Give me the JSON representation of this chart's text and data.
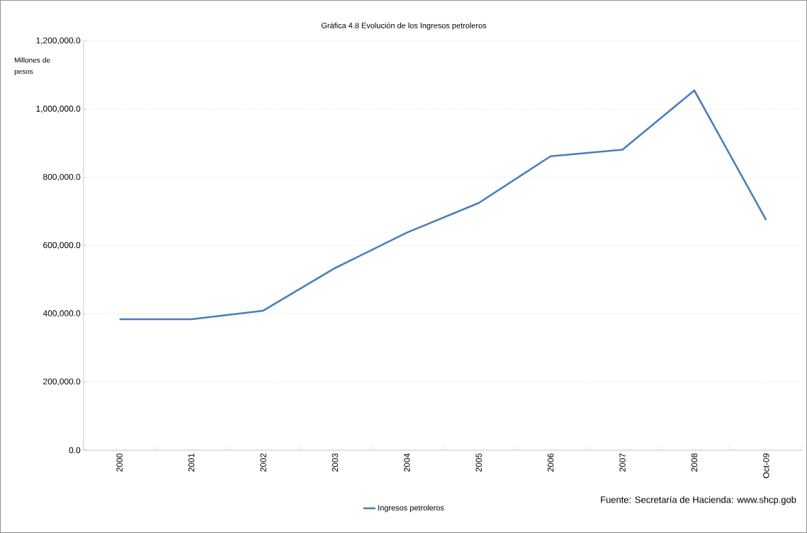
{
  "chart_data": {
    "type": "line",
    "title": "Gráfica 4.8 Evolución de los Ingresos petroleros",
    "ylabel": "Millones de pesos",
    "categories": [
      "2000",
      "2001",
      "2002",
      "2003",
      "2004",
      "2005",
      "2006",
      "2007",
      "2008",
      "Oct-09"
    ],
    "series": [
      {
        "name": "Ingresos petroleros",
        "color": "#4a7ebb",
        "values": [
          384000,
          384000,
          409000,
          534000,
          638000,
          725000,
          862000,
          881000,
          1055000,
          675000
        ]
      }
    ],
    "ylim": [
      0,
      1200000
    ],
    "yticks": [
      {
        "value": 0,
        "label": "0.0"
      },
      {
        "value": 200000,
        "label": "200,000.0"
      },
      {
        "value": 400000,
        "label": "400,000.0"
      },
      {
        "value": 600000,
        "label": "600,000.0"
      },
      {
        "value": 800000,
        "label": "800,000.0"
      },
      {
        "value": 1000000,
        "label": "1,000,000.0"
      },
      {
        "value": 1200000,
        "label": "1,200,000.0"
      }
    ],
    "grid": "y",
    "legend": "bottom",
    "marker": "none",
    "line_style": "solid",
    "annotations": [
      "Fuente: Secretaría de Hacienda: www.shcp.gob"
    ]
  }
}
